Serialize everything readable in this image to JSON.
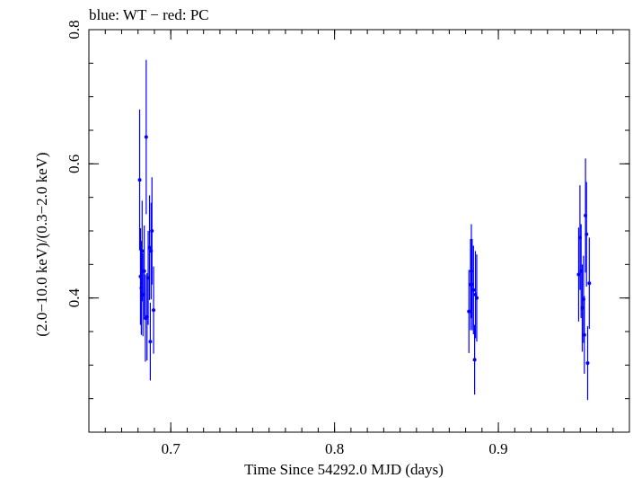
{
  "chart_data": {
    "type": "scatter",
    "title": "blue: WT − red: PC",
    "xlabel": "Time Since 54292.0 MJD (days)",
    "ylabel": "(2.0−10.0 keV)/(0.3−2.0 keV)",
    "xlim": [
      0.65,
      0.98
    ],
    "ylim": [
      0.2,
      0.8
    ],
    "xticks": [
      {
        "value": 0.7,
        "label": "0.7"
      },
      {
        "value": 0.8,
        "label": "0.8"
      },
      {
        "value": 0.9,
        "label": "0.9"
      }
    ],
    "yticks": [
      {
        "value": 0.4,
        "label": "0.4"
      },
      {
        "value": 0.6,
        "label": "0.6"
      },
      {
        "value": 0.8,
        "label": "0.8"
      }
    ],
    "xminor_step": 0.01,
    "yminor_step": 0.05,
    "grid": false,
    "series": [
      {
        "color": "#0000ff",
        "points": [
          {
            "x": 0.681,
            "y": 0.576,
            "err": 0.105
          },
          {
            "x": 0.6815,
            "y": 0.432,
            "err": 0.072
          },
          {
            "x": 0.682,
            "y": 0.415,
            "err": 0.07
          },
          {
            "x": 0.6825,
            "y": 0.47,
            "err": 0.075
          },
          {
            "x": 0.683,
            "y": 0.405,
            "err": 0.062
          },
          {
            "x": 0.6838,
            "y": 0.44,
            "err": 0.068
          },
          {
            "x": 0.6845,
            "y": 0.37,
            "err": 0.065
          },
          {
            "x": 0.685,
            "y": 0.64,
            "err": 0.115
          },
          {
            "x": 0.6855,
            "y": 0.372,
            "err": 0.065
          },
          {
            "x": 0.6862,
            "y": 0.43,
            "err": 0.07
          },
          {
            "x": 0.687,
            "y": 0.475,
            "err": 0.078
          },
          {
            "x": 0.6875,
            "y": 0.335,
            "err": 0.058
          },
          {
            "x": 0.688,
            "y": 0.47,
            "err": 0.072
          },
          {
            "x": 0.6885,
            "y": 0.5,
            "err": 0.08
          },
          {
            "x": 0.6895,
            "y": 0.382,
            "err": 0.065
          },
          {
            "x": 0.882,
            "y": 0.38,
            "err": 0.062
          },
          {
            "x": 0.883,
            "y": 0.42,
            "err": 0.068
          },
          {
            "x": 0.8835,
            "y": 0.44,
            "err": 0.07
          },
          {
            "x": 0.884,
            "y": 0.42,
            "err": 0.068
          },
          {
            "x": 0.8848,
            "y": 0.412,
            "err": 0.066
          },
          {
            "x": 0.8855,
            "y": 0.308,
            "err": 0.052
          },
          {
            "x": 0.886,
            "y": 0.405,
            "err": 0.065
          },
          {
            "x": 0.8868,
            "y": 0.4,
            "err": 0.065
          },
          {
            "x": 0.949,
            "y": 0.435,
            "err": 0.07
          },
          {
            "x": 0.9498,
            "y": 0.49,
            "err": 0.078
          },
          {
            "x": 0.9505,
            "y": 0.44,
            "err": 0.07
          },
          {
            "x": 0.9512,
            "y": 0.385,
            "err": 0.065
          },
          {
            "x": 0.952,
            "y": 0.398,
            "err": 0.065
          },
          {
            "x": 0.9525,
            "y": 0.345,
            "err": 0.058
          },
          {
            "x": 0.9532,
            "y": 0.523,
            "err": 0.085
          },
          {
            "x": 0.9538,
            "y": 0.495,
            "err": 0.078
          },
          {
            "x": 0.9545,
            "y": 0.303,
            "err": 0.055
          },
          {
            "x": 0.9555,
            "y": 0.422,
            "err": 0.068
          }
        ]
      }
    ]
  }
}
